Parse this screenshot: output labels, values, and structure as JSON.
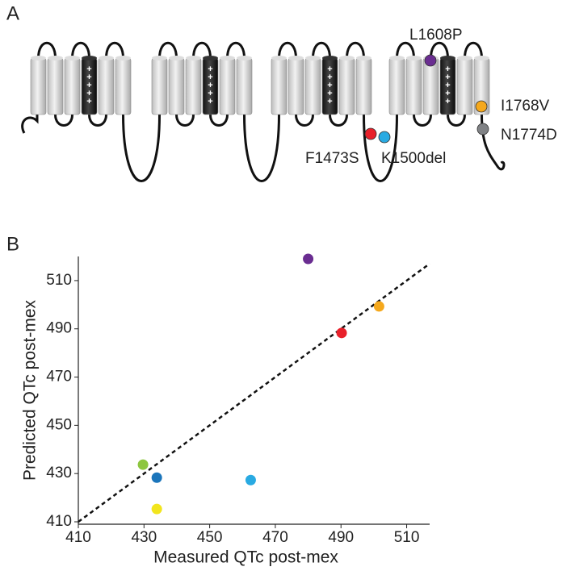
{
  "panel_a": {
    "label": "A",
    "mutations": [
      {
        "label": "L1608P",
        "color": "#6a2d91"
      },
      {
        "label": "I1768V",
        "color": "#f5a81c"
      },
      {
        "label": "N1774D",
        "color": "#808285"
      },
      {
        "label": "F1473S",
        "color": "#e8202a"
      },
      {
        "label": "K1500del",
        "color": "#29aae2"
      }
    ]
  },
  "chart_data": {
    "type": "scatter",
    "panel_label": "B",
    "x_label": "Measured QTc post-mex",
    "y_label": "Predicted QTc post-mex",
    "xlim": [
      410,
      517
    ],
    "ylim": [
      409,
      520
    ],
    "xticks": [
      410,
      430,
      450,
      470,
      490,
      510
    ],
    "yticks": [
      410,
      430,
      450,
      470,
      490,
      510
    ],
    "diagonal": "dashed",
    "points": [
      {
        "x": 480,
        "y": 519,
        "color": "#6a2d91"
      },
      {
        "x": 501.6,
        "y": 499.3,
        "color": "#f5a81c"
      },
      {
        "x": 490.2,
        "y": 488.3,
        "color": "#e8202a"
      },
      {
        "x": 462.5,
        "y": 427.3,
        "color": "#29aae2"
      },
      {
        "x": 433.9,
        "y": 428.3,
        "color": "#1b75bb"
      },
      {
        "x": 429.7,
        "y": 433.7,
        "color": "#8dc63f"
      },
      {
        "x": 433.9,
        "y": 415.3,
        "color": "#f2e51d"
      }
    ]
  }
}
